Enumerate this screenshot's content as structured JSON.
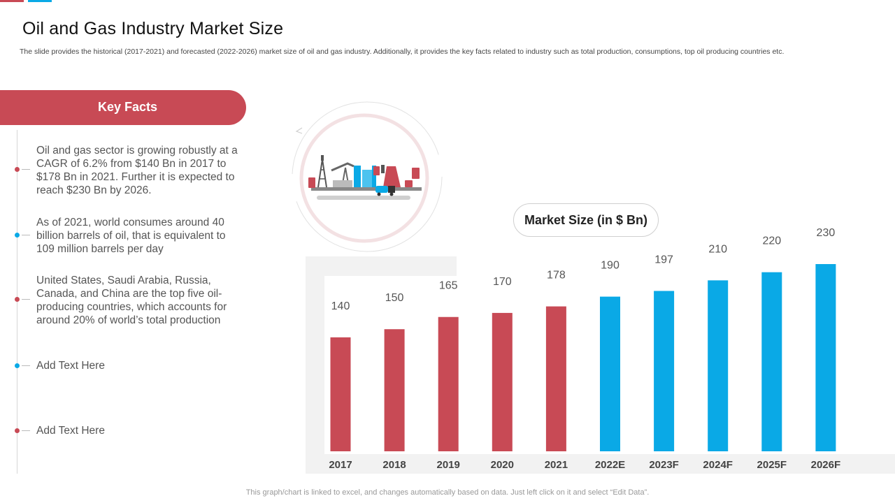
{
  "header": {
    "title": "Oil and Gas Industry Market Size",
    "subtitle": "The slide provides the historical (2017-2021) and forecasted (2022-2026) market size of oil and gas industry. Additionally, it provides the key facts related to industry such as total production, consumptions, top oil producing countries etc."
  },
  "key_facts": {
    "heading": "Key Facts",
    "items": [
      {
        "text": "Oil and gas sector is growing robustly  at a CAGR of 6.2% from $140 Bn in 2017 to $178 Bn in 2021. Further  it is expected to reach $230 Bn by 2026.",
        "dot_color": "#c84a55"
      },
      {
        "text": "As of 2021, world consumes around 40 billion barrels of oil, that is equivalent to 109 million barrels per day",
        "dot_color": "#0aa9e6"
      },
      {
        "text": "United States, Saudi Arabia, Russia, Canada, and China are the top five oil-producing countries, which accounts for around 20% of world’s total production",
        "dot_color": "#c84a55"
      },
      {
        "text": "Add Text Here",
        "dot_color": "#0aa9e6"
      },
      {
        "text": "Add Text Here",
        "dot_color": "#c84a55"
      }
    ]
  },
  "illustration": {
    "icon": "oil-refinery-icon"
  },
  "colors": {
    "historical": "#c84a55",
    "forecast": "#0aa9e6",
    "accent": "#c84a55"
  },
  "chart_data": {
    "type": "bar",
    "title": "Market Size (in $ Bn)",
    "categories": [
      "2017",
      "2018",
      "2019",
      "2020",
      "2021",
      "2022E",
      "2023F",
      "2024F",
      "2025F",
      "2026F"
    ],
    "values": [
      140,
      150,
      165,
      170,
      178,
      190,
      197,
      210,
      220,
      230
    ],
    "series_colors": [
      "#c84a55",
      "#c84a55",
      "#c84a55",
      "#c84a55",
      "#c84a55",
      "#0aa9e6",
      "#0aa9e6",
      "#0aa9e6",
      "#0aa9e6",
      "#0aa9e6"
    ],
    "ylim": [
      0,
      230
    ],
    "grid": false,
    "data_labels": true
  },
  "footer": {
    "note": "This graph/chart is linked to excel,  and changes automatically based on data. Just left click on it and select “Edit Data”."
  }
}
